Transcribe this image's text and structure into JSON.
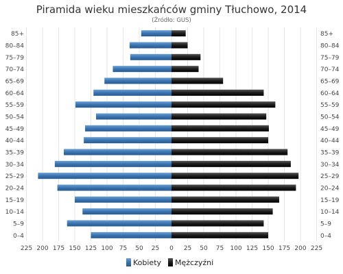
{
  "chart_data": {
    "type": "bar",
    "title": "Piramida wieku mieszkańców gminy Tłuchowo, 2014",
    "subtitle": "(Źródło: GUS)",
    "categories": [
      "0–4",
      "5–9",
      "10–14",
      "15–19",
      "20–24",
      "25–29",
      "30–34",
      "35–39",
      "40–44",
      "45–49",
      "50–54",
      "55–59",
      "60–64",
      "65–69",
      "70–74",
      "75–79",
      "80–84",
      "85+"
    ],
    "series": [
      {
        "name": "Kobiety",
        "color": "#3a74b0",
        "values": [
          125,
          162,
          138,
          150,
          177,
          207,
          181,
          167,
          136,
          134,
          117,
          149,
          121,
          104,
          91,
          64,
          65,
          47
        ]
      },
      {
        "name": "Mężczyźni",
        "color": "#1c1c1c",
        "values": [
          150,
          143,
          157,
          167,
          193,
          197,
          185,
          180,
          150,
          151,
          147,
          161,
          143,
          80,
          42,
          45,
          25,
          22
        ]
      }
    ],
    "x_ticks": [
      "225",
      "200",
      "175",
      "150",
      "125",
      "100",
      "75",
      "50",
      "25",
      "0",
      "25",
      "50",
      "75",
      "100",
      "125",
      "150",
      "175",
      "200",
      "225"
    ],
    "xlim": [
      -225,
      225
    ],
    "grid": true,
    "legend_position": "bottom"
  }
}
